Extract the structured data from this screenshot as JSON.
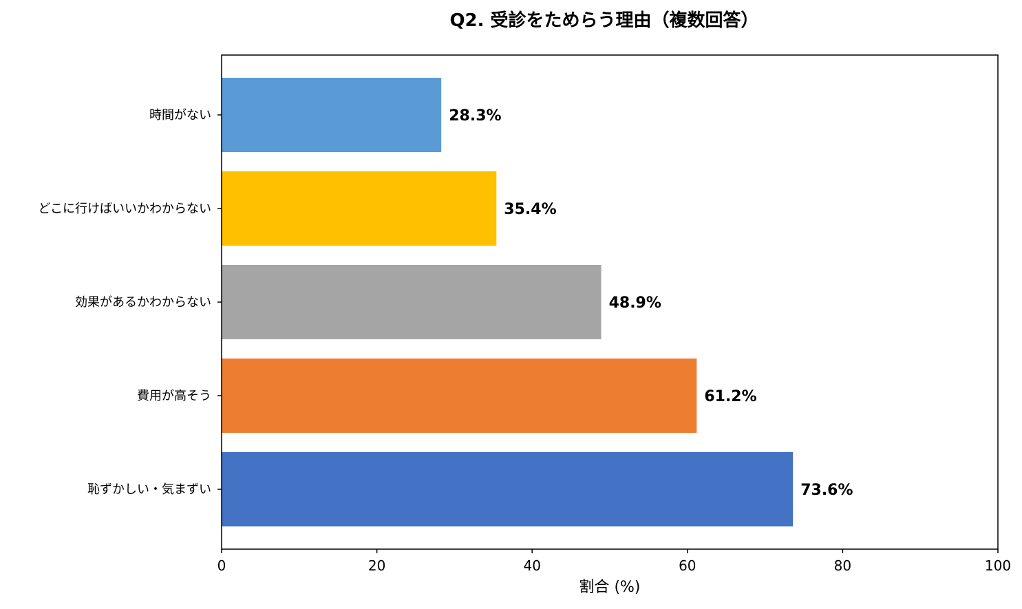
{
  "chart_data": {
    "type": "bar",
    "orientation": "horizontal",
    "title": "Q2. 受診をためらう理由（複数回答）",
    "xlabel": "割合 (%)",
    "ylabel": "",
    "xlim": [
      0,
      100
    ],
    "xticks": [
      0,
      20,
      40,
      60,
      80,
      100
    ],
    "grid": false,
    "categories": [
      "時間がない",
      "どこに行けばいいかわからない",
      "効果があるかわからない",
      "費用が高そう",
      "恥ずかしい・気まずい"
    ],
    "values": [
      28.3,
      35.4,
      48.9,
      61.2,
      73.6
    ],
    "value_labels": [
      "28.3%",
      "35.4%",
      "48.9%",
      "61.2%",
      "73.6%"
    ],
    "colors": [
      "#5B9BD5",
      "#FFC000",
      "#A5A5A5",
      "#ED7D31",
      "#4472C4"
    ]
  }
}
